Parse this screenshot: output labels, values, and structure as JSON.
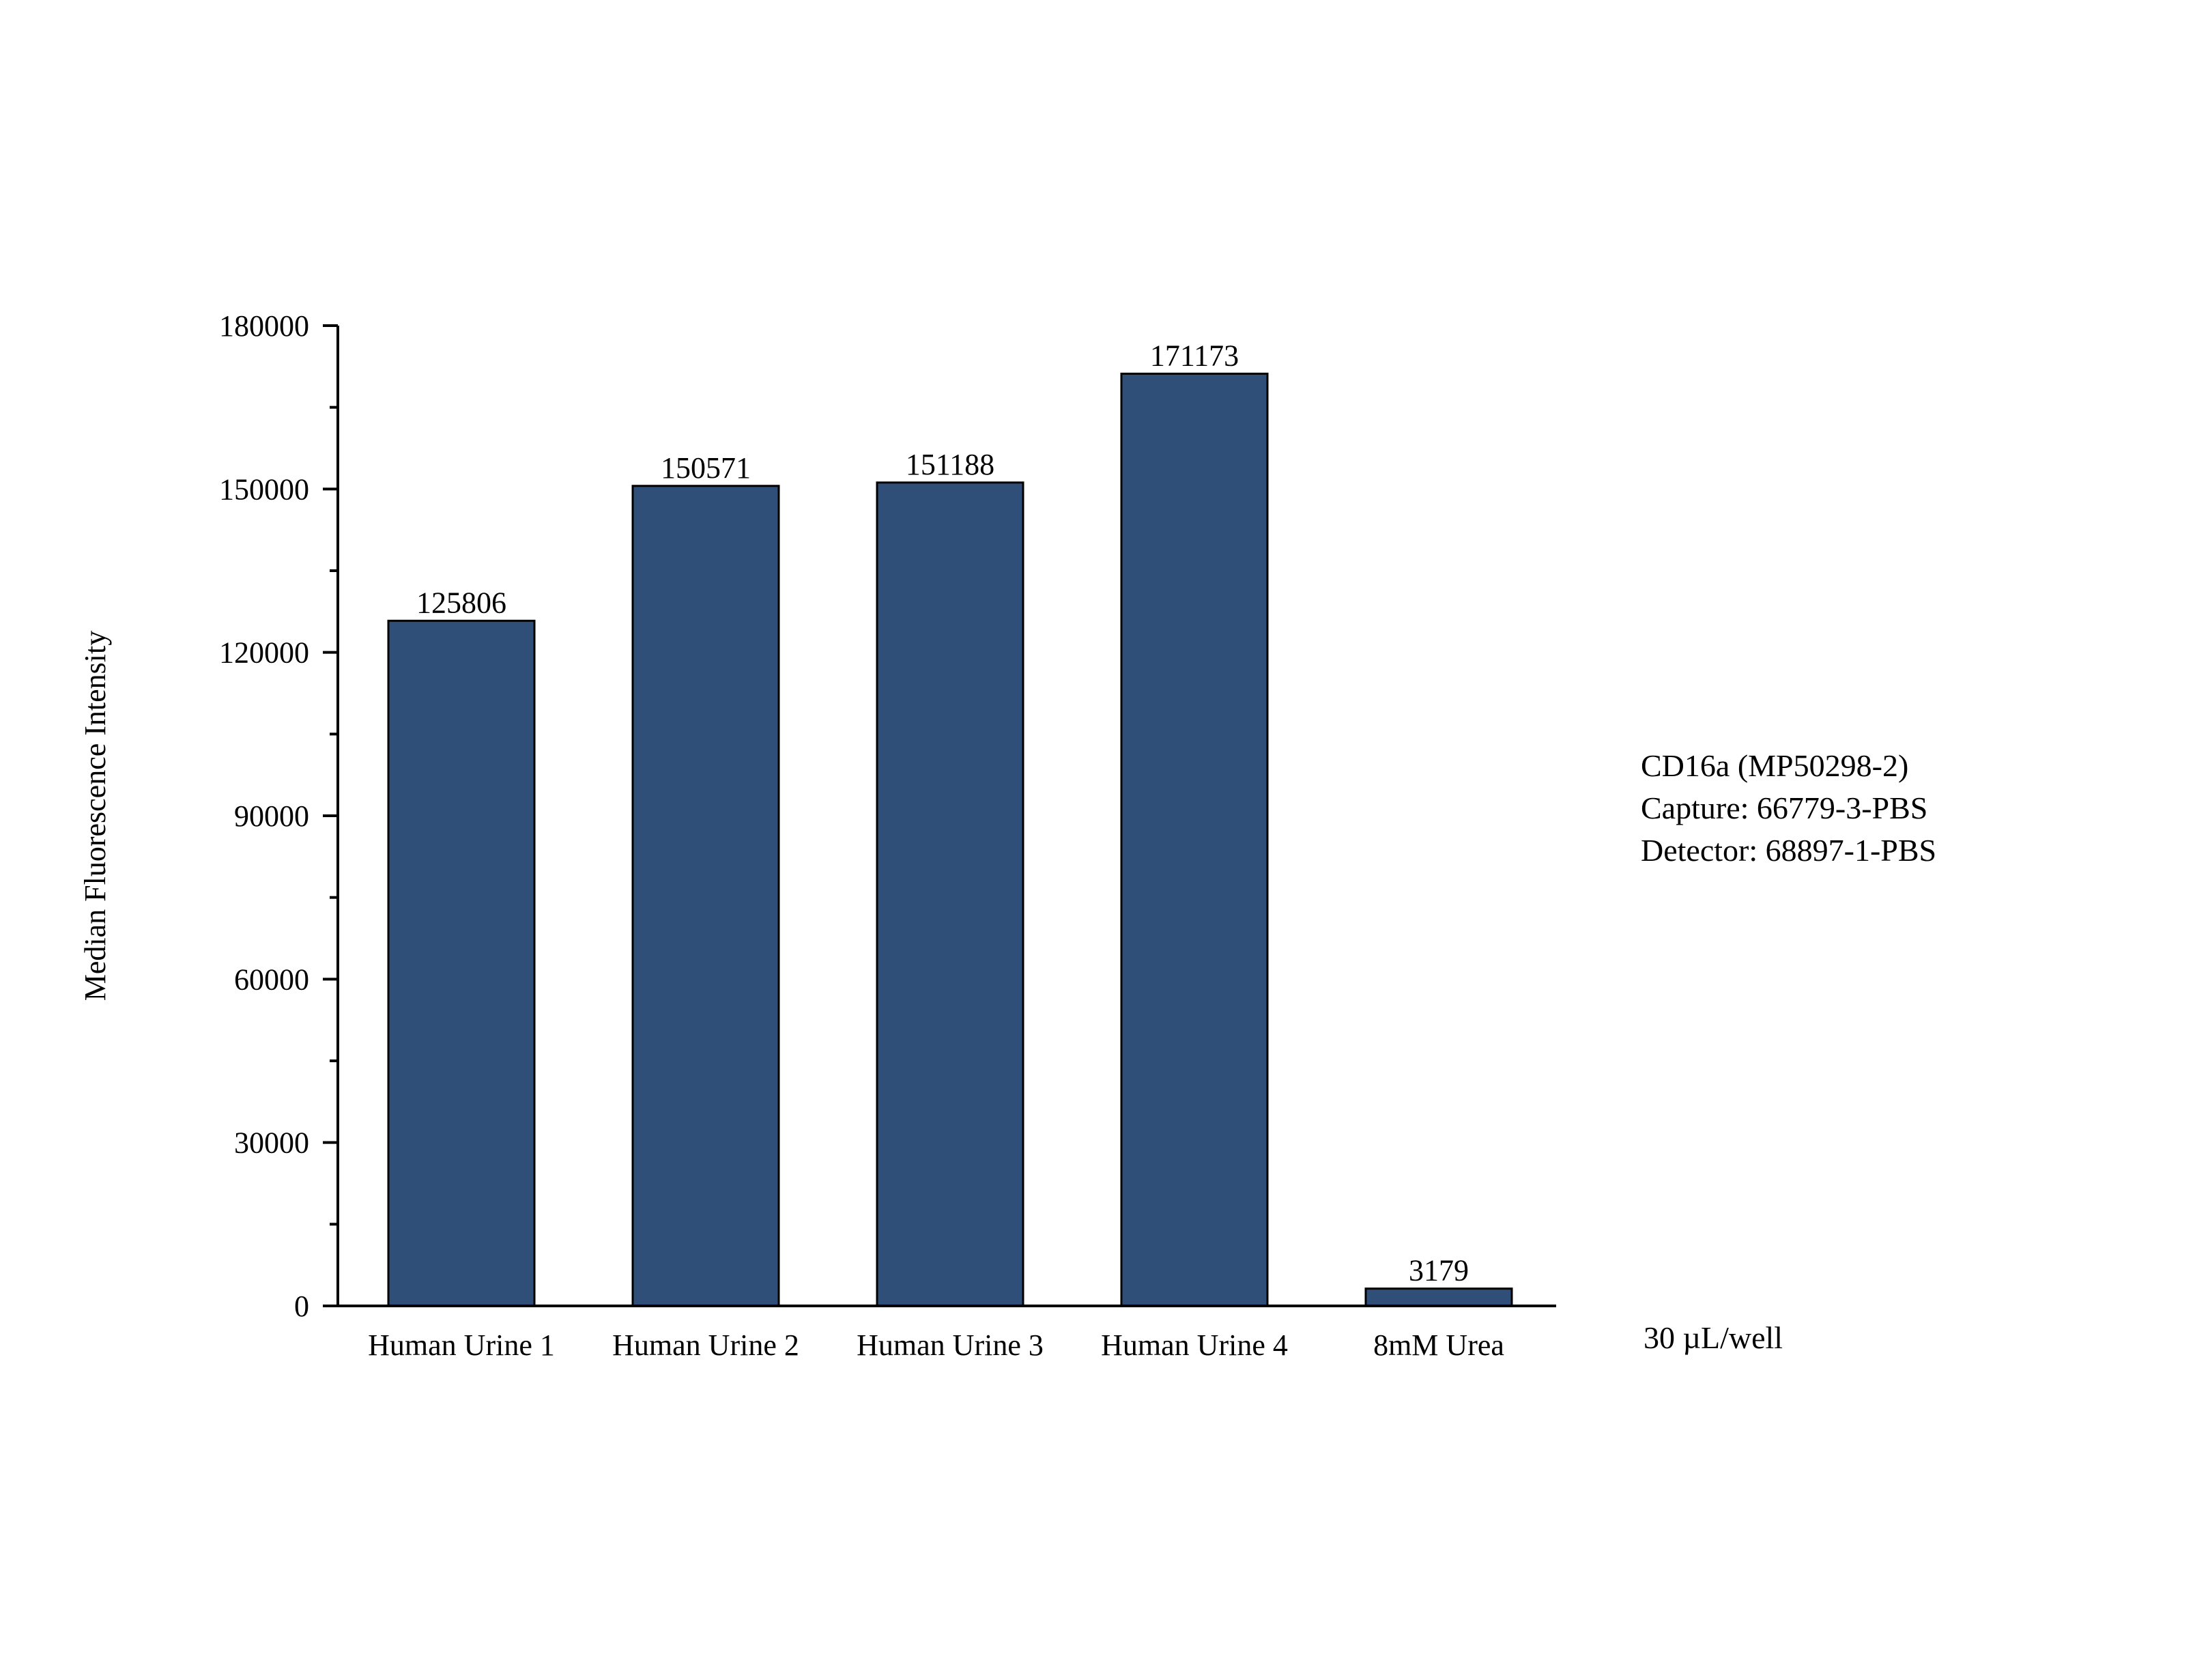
{
  "chart_data": {
    "type": "bar",
    "categories": [
      "Human Urine 1",
      "Human Urine 2",
      "Human Urine 3",
      "Human Urine 4",
      "8mM Urea"
    ],
    "values": [
      125806,
      150571,
      151188,
      171173,
      3179
    ],
    "data_labels": [
      "125806",
      "150571",
      "151188",
      "171173",
      "3179"
    ],
    "title": "",
    "xlabel": "",
    "ylabel": "Median Fluorescence Intensity",
    "ylim": [
      0,
      180000
    ],
    "yticks": [
      0,
      30000,
      60000,
      90000,
      120000,
      150000,
      180000
    ],
    "ytick_labels": [
      "0",
      "30000",
      "60000",
      "90000",
      "120000",
      "150000",
      "180000"
    ],
    "grid": false,
    "bar_color": "#304f78",
    "bar_edge_color": "#000000",
    "annotations": {
      "legend_lines": [
        "CD16a (MP50298-2)",
        "Capture: 66779-3-PBS",
        "Detector: 68897-1-PBS"
      ],
      "volume_note": "30 µL/well"
    }
  }
}
